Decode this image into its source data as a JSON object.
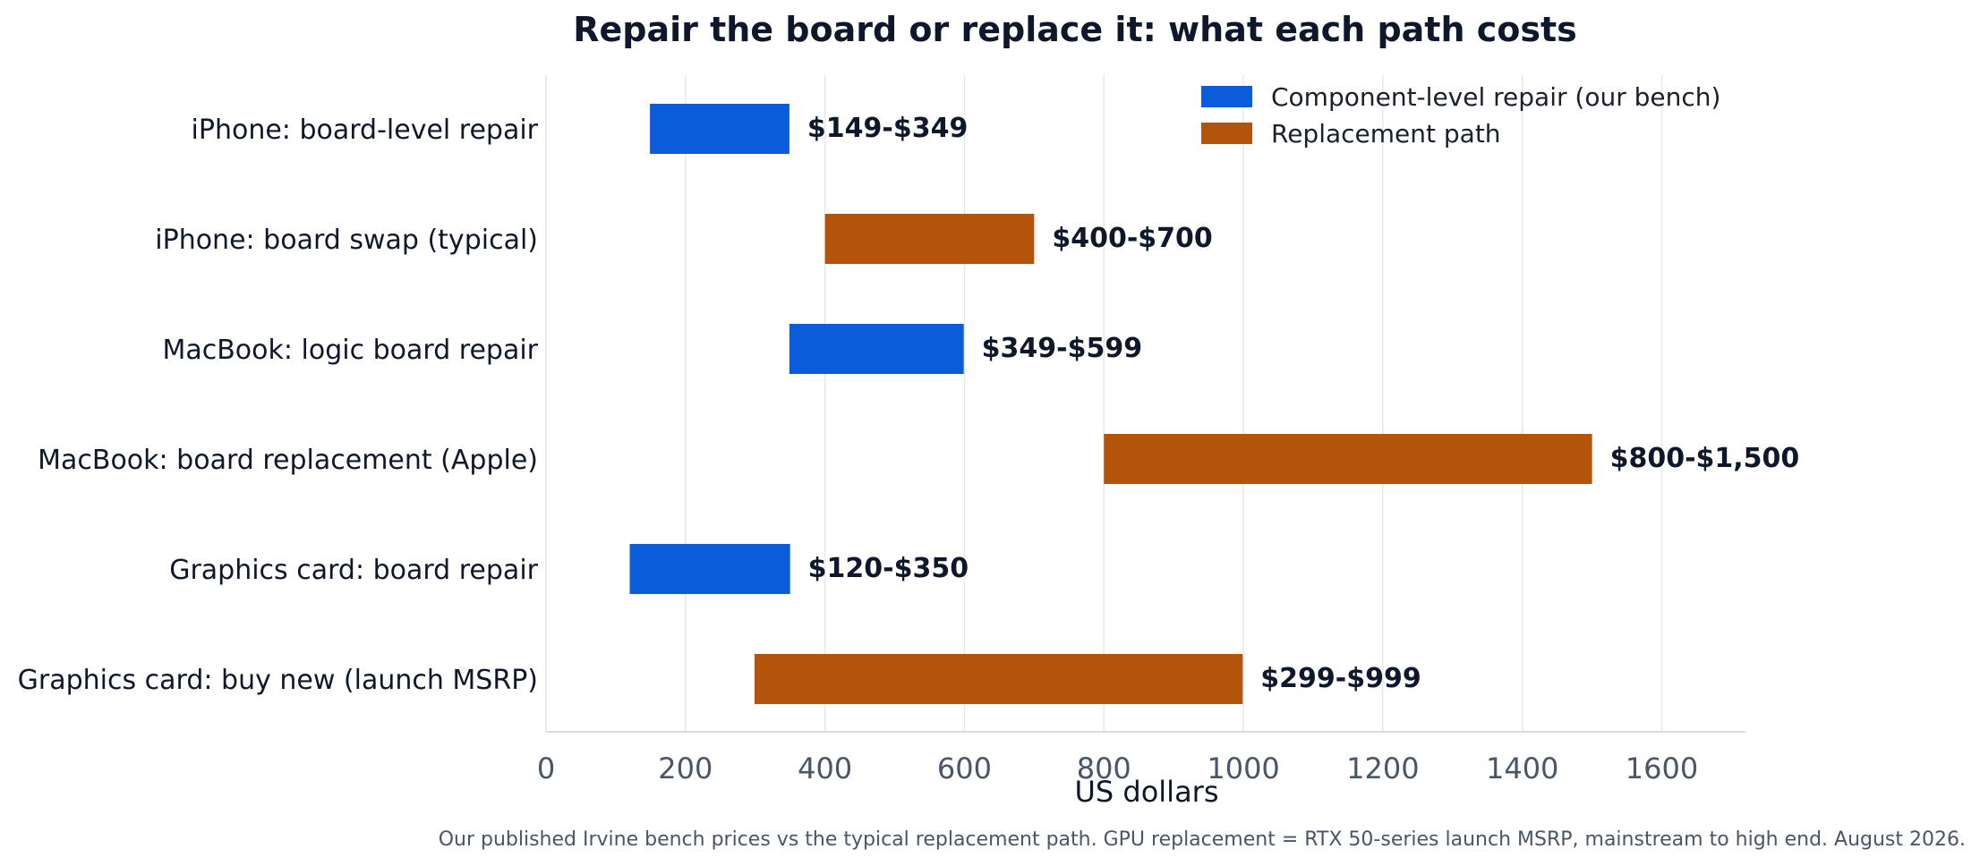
{
  "chart_data": {
    "type": "bar",
    "orientation": "horizontal",
    "bar_style": "floating-range",
    "title": "Repair the board or replace it: what each path costs",
    "xlabel": "US dollars",
    "ylabel": "",
    "xlim": [
      0,
      1720
    ],
    "xticks": [
      0,
      200,
      400,
      600,
      800,
      1000,
      1200,
      1400,
      1600
    ],
    "grid": "vertical",
    "legend_position": "top-right",
    "series_colors": {
      "repair": "#0b5cdb",
      "replacement": "#b4530a"
    },
    "series": [
      {
        "key": "repair",
        "name": "Component-level repair (our bench)"
      },
      {
        "key": "replacement",
        "name": "Replacement path"
      }
    ],
    "bars": [
      {
        "category": "iPhone: board-level repair",
        "series": "repair",
        "low": 149,
        "high": 349,
        "label": "$149-$349"
      },
      {
        "category": "iPhone: board swap (typical)",
        "series": "replacement",
        "low": 400,
        "high": 700,
        "label": "$400-$700"
      },
      {
        "category": "MacBook: logic board repair",
        "series": "repair",
        "low": 349,
        "high": 599,
        "label": "$349-$599"
      },
      {
        "category": "MacBook: board replacement (Apple)",
        "series": "replacement",
        "low": 800,
        "high": 1500,
        "label": "$800-$1,500"
      },
      {
        "category": "Graphics card: board repair",
        "series": "repair",
        "low": 120,
        "high": 350,
        "label": "$120-$350"
      },
      {
        "category": "Graphics card: buy new (launch MSRP)",
        "series": "replacement",
        "low": 299,
        "high": 999,
        "label": "$299-$999"
      }
    ],
    "footnote": "Our published Irvine bench prices vs the typical replacement path. GPU replacement = RTX 50-series launch MSRP, mainstream to high end. August 2026."
  }
}
